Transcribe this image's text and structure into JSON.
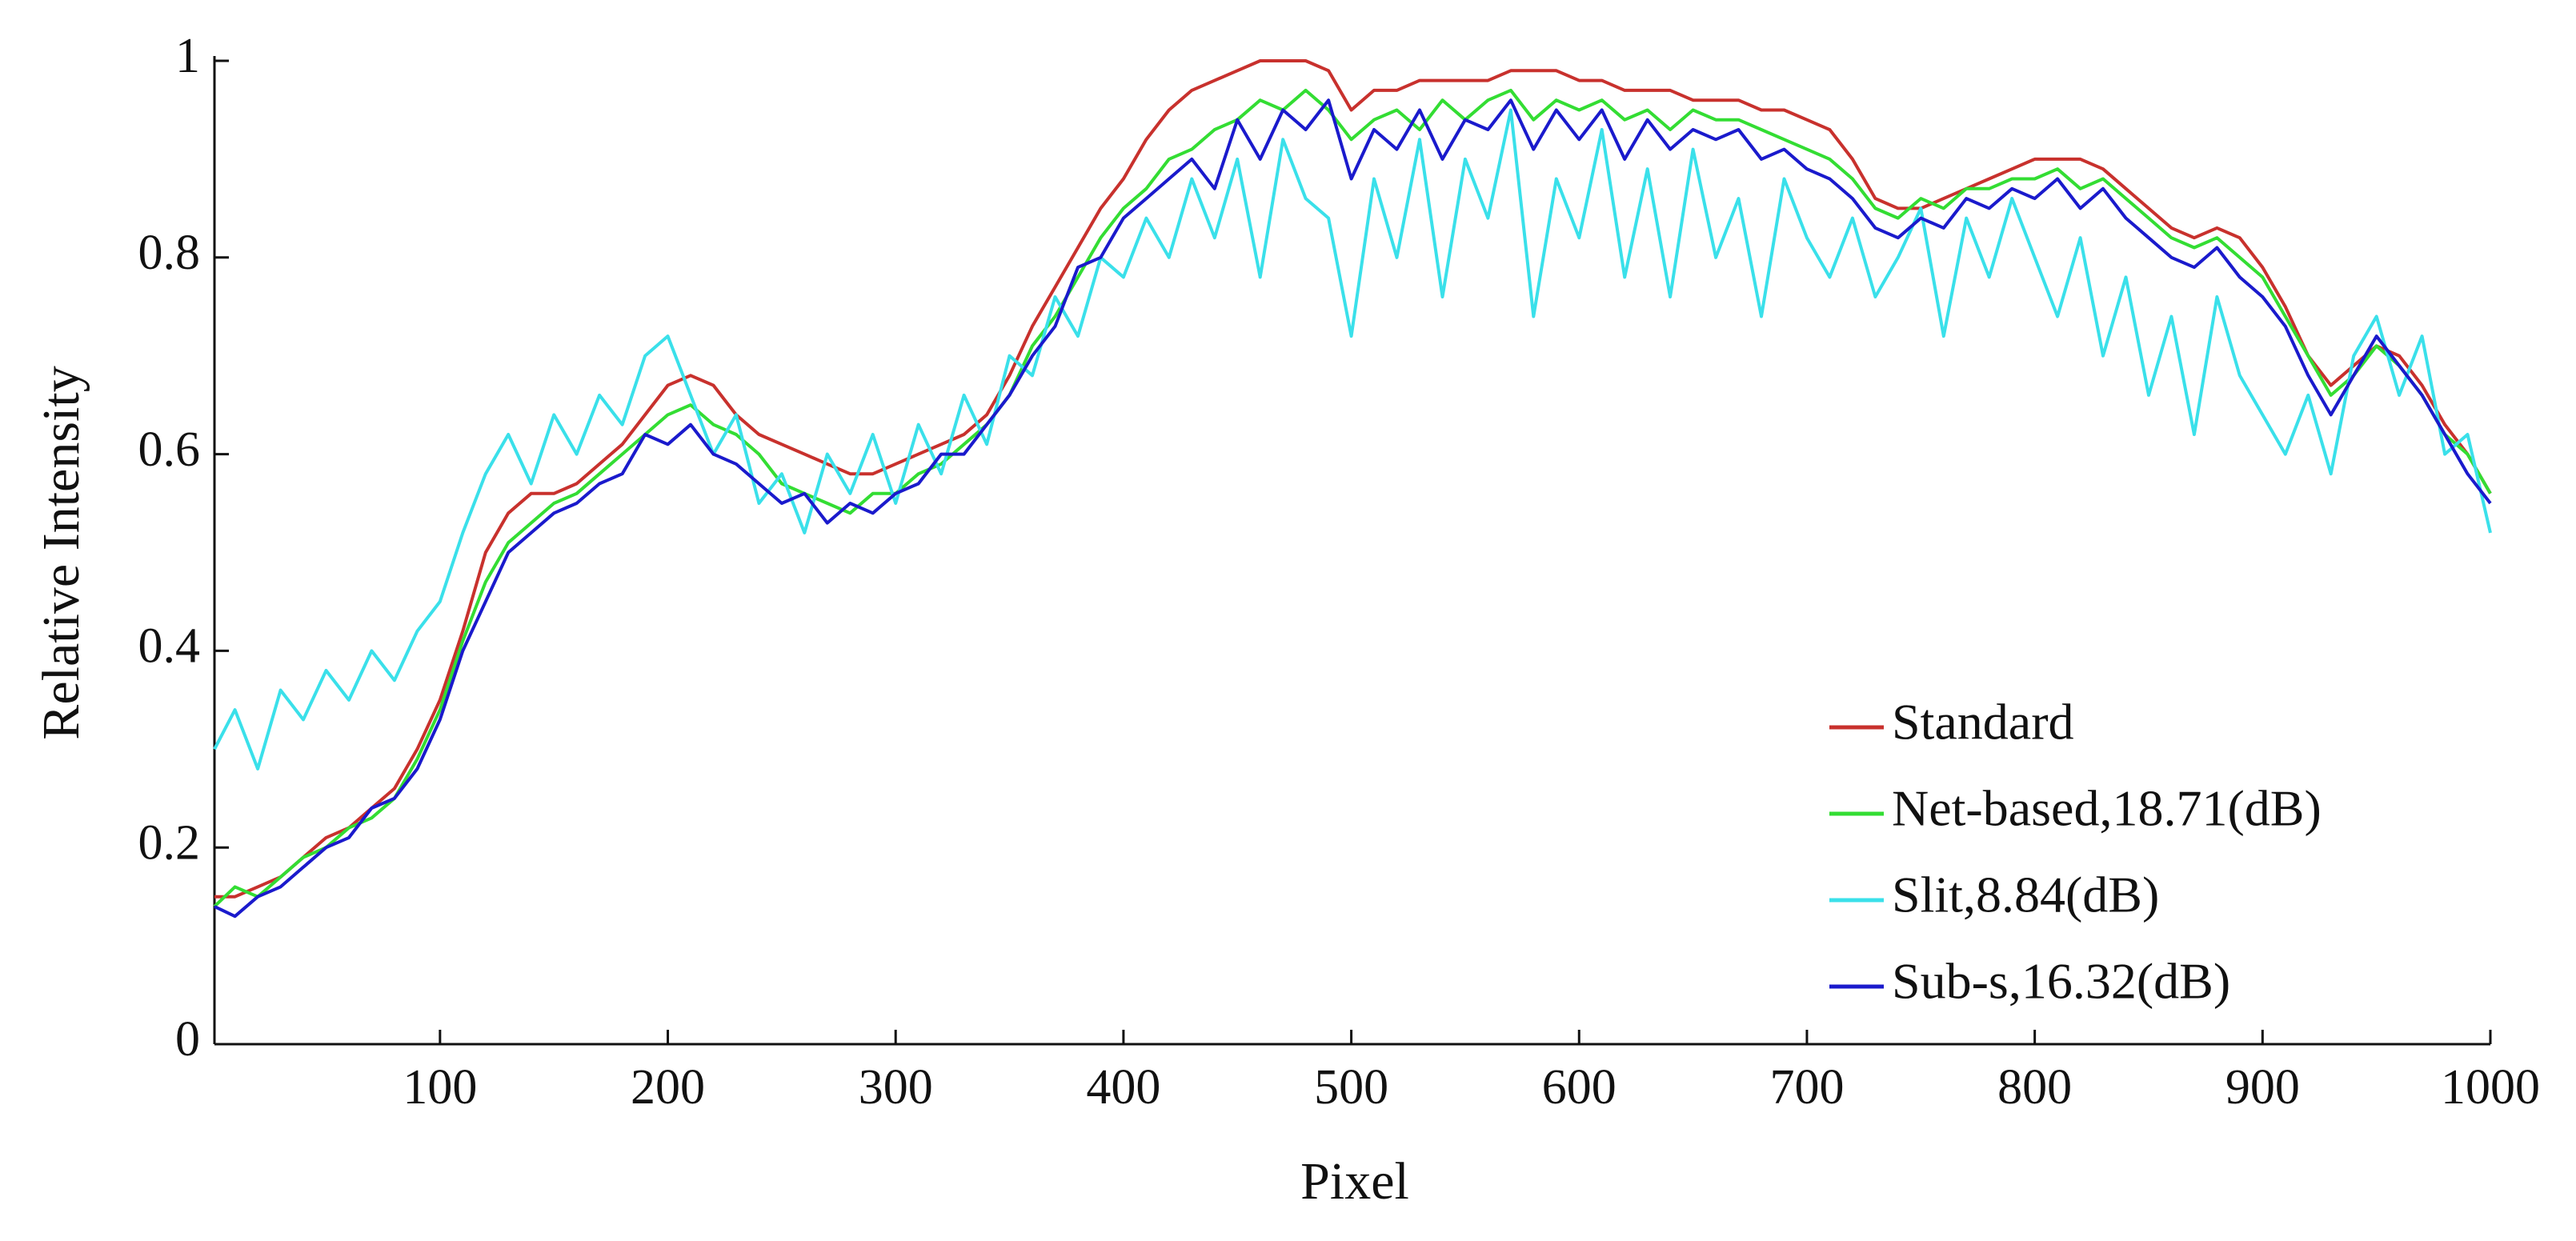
{
  "chart_data": {
    "type": "line",
    "x_label": "Pixel",
    "y_label": "Relative Intensity",
    "x": [
      1,
      10,
      20,
      30,
      40,
      50,
      60,
      70,
      80,
      90,
      100,
      110,
      120,
      130,
      140,
      150,
      160,
      170,
      180,
      190,
      200,
      210,
      220,
      230,
      240,
      250,
      260,
      270,
      280,
      290,
      300,
      310,
      320,
      330,
      340,
      350,
      360,
      370,
      380,
      390,
      400,
      410,
      420,
      430,
      440,
      450,
      460,
      470,
      480,
      490,
      500,
      510,
      520,
      530,
      540,
      550,
      560,
      570,
      580,
      590,
      600,
      610,
      620,
      630,
      640,
      650,
      660,
      670,
      680,
      690,
      700,
      710,
      720,
      730,
      740,
      750,
      760,
      770,
      780,
      790,
      800,
      810,
      820,
      830,
      840,
      850,
      860,
      870,
      880,
      890,
      900,
      910,
      920,
      930,
      940,
      950,
      960,
      970,
      980,
      990,
      1000
    ],
    "series": [
      {
        "name": "Standard",
        "color": "#c8312d",
        "values": [
          0.15,
          0.15,
          0.16,
          0.17,
          0.19,
          0.21,
          0.22,
          0.24,
          0.26,
          0.3,
          0.35,
          0.42,
          0.5,
          0.54,
          0.56,
          0.56,
          0.57,
          0.59,
          0.61,
          0.64,
          0.67,
          0.68,
          0.67,
          0.64,
          0.62,
          0.61,
          0.6,
          0.59,
          0.58,
          0.58,
          0.59,
          0.6,
          0.61,
          0.62,
          0.64,
          0.68,
          0.73,
          0.77,
          0.81,
          0.85,
          0.88,
          0.92,
          0.95,
          0.97,
          0.98,
          0.99,
          1.0,
          1.0,
          1.0,
          0.99,
          0.95,
          0.97,
          0.97,
          0.98,
          0.98,
          0.98,
          0.98,
          0.99,
          0.99,
          0.99,
          0.98,
          0.98,
          0.97,
          0.97,
          0.97,
          0.96,
          0.96,
          0.96,
          0.95,
          0.95,
          0.94,
          0.93,
          0.9,
          0.86,
          0.85,
          0.85,
          0.86,
          0.87,
          0.88,
          0.89,
          0.9,
          0.9,
          0.9,
          0.89,
          0.87,
          0.85,
          0.83,
          0.82,
          0.83,
          0.82,
          0.79,
          0.75,
          0.7,
          0.67,
          0.69,
          0.71,
          0.7,
          0.67,
          0.63,
          0.6,
          0.56
        ]
      },
      {
        "name": "Net-based,18.71(dB)",
        "color": "#33dd33",
        "values": [
          0.14,
          0.16,
          0.15,
          0.17,
          0.19,
          0.2,
          0.22,
          0.23,
          0.25,
          0.29,
          0.34,
          0.41,
          0.47,
          0.51,
          0.53,
          0.55,
          0.56,
          0.58,
          0.6,
          0.62,
          0.64,
          0.65,
          0.63,
          0.62,
          0.6,
          0.57,
          0.56,
          0.55,
          0.54,
          0.56,
          0.56,
          0.58,
          0.59,
          0.61,
          0.63,
          0.66,
          0.71,
          0.74,
          0.78,
          0.82,
          0.85,
          0.87,
          0.9,
          0.91,
          0.93,
          0.94,
          0.96,
          0.95,
          0.97,
          0.95,
          0.92,
          0.94,
          0.95,
          0.93,
          0.96,
          0.94,
          0.96,
          0.97,
          0.94,
          0.96,
          0.95,
          0.96,
          0.94,
          0.95,
          0.93,
          0.95,
          0.94,
          0.94,
          0.93,
          0.92,
          0.91,
          0.9,
          0.88,
          0.85,
          0.84,
          0.86,
          0.85,
          0.87,
          0.87,
          0.88,
          0.88,
          0.89,
          0.87,
          0.88,
          0.86,
          0.84,
          0.82,
          0.81,
          0.82,
          0.8,
          0.78,
          0.74,
          0.7,
          0.66,
          0.68,
          0.71,
          0.69,
          0.66,
          0.62,
          0.6,
          0.56
        ]
      },
      {
        "name": "Slit,8.84(dB)",
        "color": "#3ae0ea",
        "values": [
          0.3,
          0.34,
          0.28,
          0.36,
          0.33,
          0.38,
          0.35,
          0.4,
          0.37,
          0.42,
          0.45,
          0.52,
          0.58,
          0.62,
          0.57,
          0.64,
          0.6,
          0.66,
          0.63,
          0.7,
          0.72,
          0.66,
          0.6,
          0.64,
          0.55,
          0.58,
          0.52,
          0.6,
          0.56,
          0.62,
          0.55,
          0.63,
          0.58,
          0.66,
          0.61,
          0.7,
          0.68,
          0.76,
          0.72,
          0.8,
          0.78,
          0.84,
          0.8,
          0.88,
          0.82,
          0.9,
          0.78,
          0.92,
          0.86,
          0.84,
          0.72,
          0.88,
          0.8,
          0.92,
          0.76,
          0.9,
          0.84,
          0.95,
          0.74,
          0.88,
          0.82,
          0.93,
          0.78,
          0.89,
          0.76,
          0.91,
          0.8,
          0.86,
          0.74,
          0.88,
          0.82,
          0.78,
          0.84,
          0.76,
          0.8,
          0.85,
          0.72,
          0.84,
          0.78,
          0.86,
          0.8,
          0.74,
          0.82,
          0.7,
          0.78,
          0.66,
          0.74,
          0.62,
          0.76,
          0.68,
          0.64,
          0.6,
          0.66,
          0.58,
          0.7,
          0.74,
          0.66,
          0.72,
          0.6,
          0.62,
          0.52
        ]
      },
      {
        "name": "Sub-s,16.32(dB)",
        "color": "#1a1acc",
        "values": [
          0.14,
          0.13,
          0.15,
          0.16,
          0.18,
          0.2,
          0.21,
          0.24,
          0.25,
          0.28,
          0.33,
          0.4,
          0.45,
          0.5,
          0.52,
          0.54,
          0.55,
          0.57,
          0.58,
          0.62,
          0.61,
          0.63,
          0.6,
          0.59,
          0.57,
          0.55,
          0.56,
          0.53,
          0.55,
          0.54,
          0.56,
          0.57,
          0.6,
          0.6,
          0.63,
          0.66,
          0.7,
          0.73,
          0.79,
          0.8,
          0.84,
          0.86,
          0.88,
          0.9,
          0.87,
          0.94,
          0.9,
          0.95,
          0.93,
          0.96,
          0.88,
          0.93,
          0.91,
          0.95,
          0.9,
          0.94,
          0.93,
          0.96,
          0.91,
          0.95,
          0.92,
          0.95,
          0.9,
          0.94,
          0.91,
          0.93,
          0.92,
          0.93,
          0.9,
          0.91,
          0.89,
          0.88,
          0.86,
          0.83,
          0.82,
          0.84,
          0.83,
          0.86,
          0.85,
          0.87,
          0.86,
          0.88,
          0.85,
          0.87,
          0.84,
          0.82,
          0.8,
          0.79,
          0.81,
          0.78,
          0.76,
          0.73,
          0.68,
          0.64,
          0.68,
          0.72,
          0.69,
          0.66,
          0.62,
          0.58,
          0.55
        ]
      }
    ],
    "xlim": [
      1,
      1000
    ],
    "ylim": [
      0,
      1
    ],
    "xticks": [
      100,
      200,
      300,
      400,
      500,
      600,
      700,
      800,
      900,
      1000
    ],
    "yticks": [
      0,
      0.2,
      0.4,
      0.6,
      0.8,
      1
    ],
    "grid": false,
    "legend": "lower right"
  }
}
